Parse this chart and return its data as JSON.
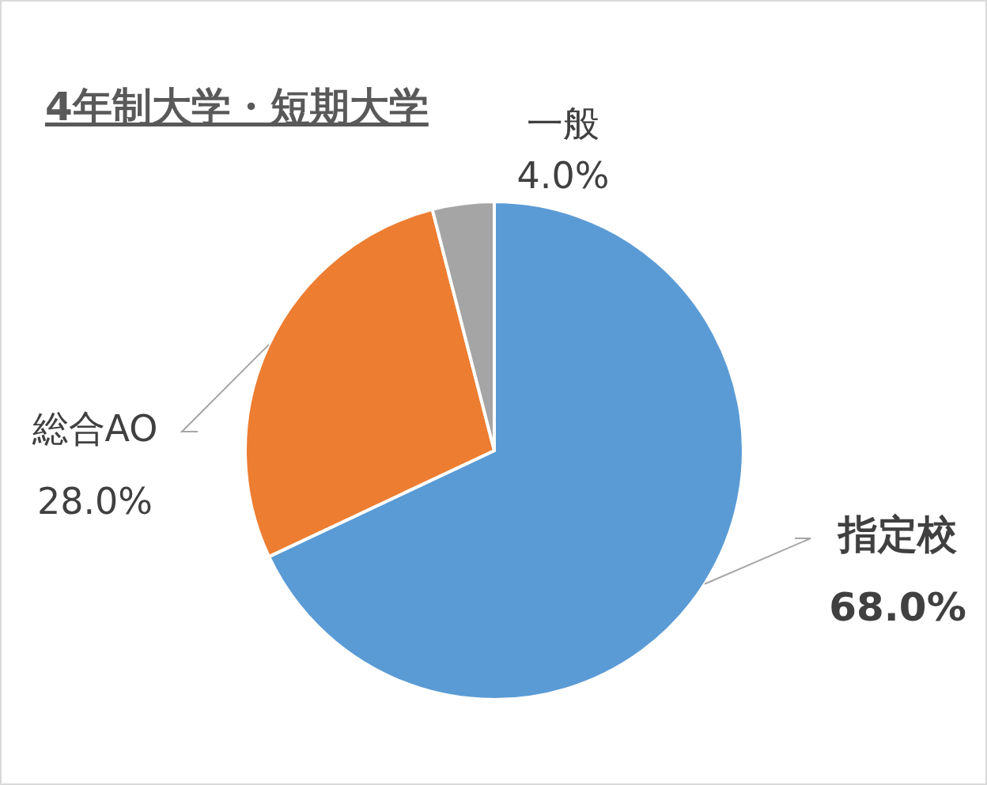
{
  "chart_data": {
    "type": "pie",
    "title": "4年制大学・短期大学",
    "categories": [
      "指定校",
      "総合AO",
      "一般"
    ],
    "values": [
      68.0,
      28.0,
      4.0
    ],
    "colors": [
      "#5b9bd5",
      "#ed7d31",
      "#a5a5a5"
    ],
    "value_labels": [
      "68.0%",
      "28.0%",
      "4.0%"
    ]
  }
}
